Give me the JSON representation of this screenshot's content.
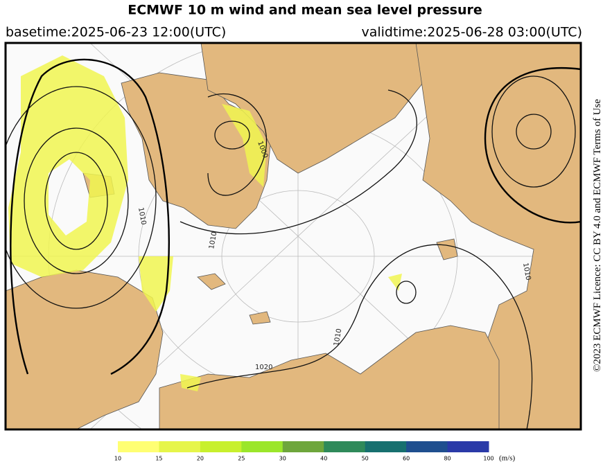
{
  "header": {
    "title": "ECMWF 10 m wind and mean sea level pressure",
    "basetime": "basetime:2025-06-23 12:00(UTC)",
    "validtime": "validtime:2025-06-28 03:00(UTC)"
  },
  "map": {
    "contour_labels": [
      "1000",
      "1010",
      "1010",
      "1020",
      "1010",
      "1010"
    ]
  },
  "colorbar": {
    "ticks": [
      10,
      15,
      20,
      25,
      30,
      40,
      50,
      60,
      80,
      100
    ],
    "colors": [
      "#ffff73",
      "#e6f54a",
      "#c8f02d",
      "#9be62a",
      "#6ea63c",
      "#2f8a5a",
      "#17706f",
      "#1f4f8f",
      "#2a3aa8"
    ],
    "unit": "(m/s)"
  },
  "credit": "©2023 ECMWF Licence: CC BY 4.0 and ECMWF Terms of Use"
}
